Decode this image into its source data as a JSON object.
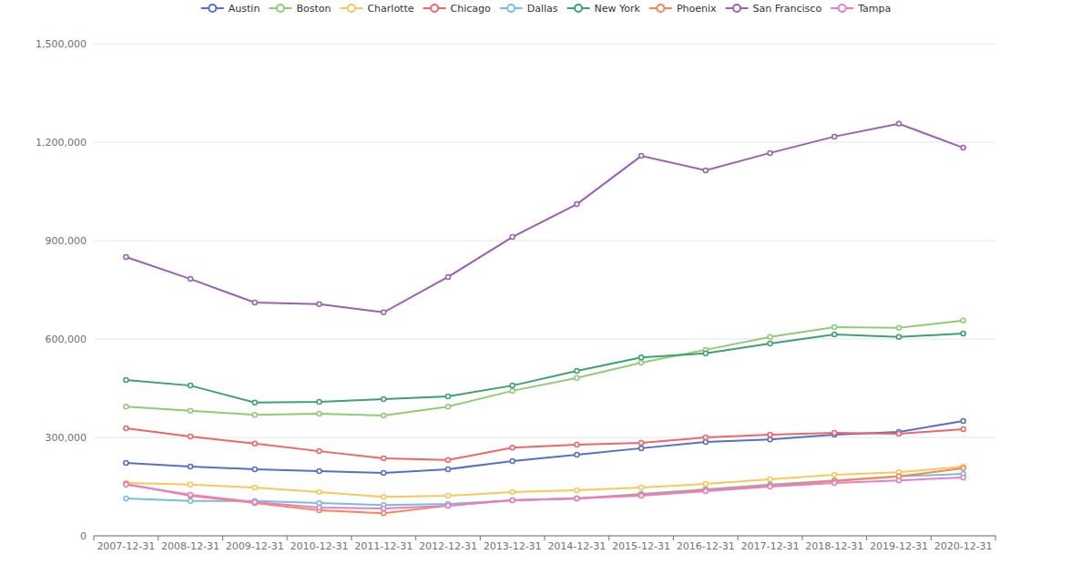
{
  "chart_data": {
    "type": "line",
    "categories": [
      "2007-12-31",
      "2008-12-31",
      "2009-12-31",
      "2010-12-31",
      "2011-12-31",
      "2012-12-31",
      "2013-12-31",
      "2014-12-31",
      "2015-12-31",
      "2016-12-31",
      "2017-12-31",
      "2018-12-31",
      "2019-12-31",
      "2020-12-31"
    ],
    "series": [
      {
        "name": "Austin",
        "color": "#5470c6",
        "values": [
          222000,
          211000,
          203000,
          197000,
          192000,
          203000,
          228000,
          247000,
          267000,
          286000,
          294000,
          308000,
          317000,
          350000
        ]
      },
      {
        "name": "Boston",
        "color": "#91cc75",
        "values": [
          394000,
          381000,
          369000,
          372000,
          367000,
          394000,
          442000,
          481000,
          528000,
          567000,
          606000,
          636000,
          634000,
          656000
        ]
      },
      {
        "name": "Charlotte",
        "color": "#fac858",
        "values": [
          161000,
          156000,
          147000,
          133000,
          119000,
          122000,
          133000,
          139000,
          147000,
          158000,
          172000,
          186000,
          194000,
          211000
        ]
      },
      {
        "name": "Chicago",
        "color": "#ee6666",
        "values": [
          328000,
          303000,
          281000,
          258000,
          236000,
          231000,
          269000,
          278000,
          283000,
          300000,
          308000,
          314000,
          311000,
          325000
        ]
      },
      {
        "name": "Dallas",
        "color": "#73c0de",
        "values": [
          114000,
          106000,
          106000,
          100000,
          94000,
          97000,
          108000,
          114000,
          128000,
          142000,
          156000,
          169000,
          181000,
          189000
        ]
      },
      {
        "name": "New York",
        "color": "#3ba272",
        "values": [
          475000,
          458000,
          406000,
          408000,
          417000,
          425000,
          458000,
          503000,
          544000,
          556000,
          586000,
          614000,
          606000,
          617000
        ]
      },
      {
        "name": "Phoenix",
        "color": "#fc8452",
        "values": [
          158000,
          122000,
          100000,
          78000,
          69000,
          92000,
          108000,
          114000,
          125000,
          139000,
          153000,
          167000,
          181000,
          206000
        ]
      },
      {
        "name": "San Francisco",
        "color": "#9a60b4",
        "values": [
          850000,
          783000,
          711000,
          706000,
          681000,
          789000,
          911000,
          1011000,
          1158000,
          1114000,
          1167000,
          1217000,
          1256000,
          1183000
        ]
      },
      {
        "name": "Tampa",
        "color": "#ea7ccc",
        "values": [
          156000,
          125000,
          103000,
          86000,
          83000,
          92000,
          108000,
          114000,
          122000,
          136000,
          150000,
          161000,
          169000,
          178000
        ]
      }
    ],
    "ylim": [
      0,
      1500000
    ],
    "yticks": [
      0,
      {
        "value": 300000,
        "label": "300,000"
      },
      {
        "value": 600000,
        "label": "600,000"
      },
      {
        "value": 900000,
        "label": "900,000"
      },
      {
        "value": 1200000,
        "label": "1,200,000"
      },
      {
        "value": 1500000,
        "label": "1,500,000"
      }
    ],
    "grid": true,
    "legend": "top",
    "marker": "circle"
  }
}
